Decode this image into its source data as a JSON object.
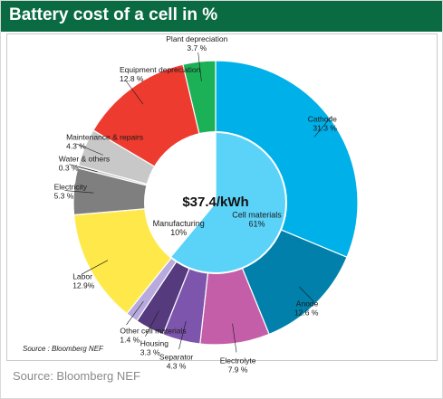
{
  "header": {
    "title": "Battery cost of a cell in %"
  },
  "colors": {
    "header_bg": "#0a6b42",
    "header_text": "#ffffff",
    "source_text": "#8a8a8a"
  },
  "chart_data": {
    "type": "pie",
    "title": "Battery cost of a cell in %",
    "center_label": "$37.4/kWh",
    "source": "Source : Bloomberg NEF",
    "inner": [
      {
        "name": "Cell materials",
        "pct": "61%",
        "value": 61,
        "color": "#5bd3f9"
      },
      {
        "name": "Manufacturing",
        "pct": "10%",
        "value": 10,
        "color": "#ffffff"
      },
      {
        "name": "",
        "pct": "",
        "value": 29,
        "color": "#ffffff"
      }
    ],
    "outer": [
      {
        "name": "Cathode",
        "pct": "31.3 %",
        "value": 31.3,
        "color": "#00b0e8"
      },
      {
        "name": "Anode",
        "pct": "12.6 %",
        "value": 12.6,
        "color": "#0080aa"
      },
      {
        "name": "Electrolyte",
        "pct": "7.9 %",
        "value": 7.9,
        "color": "#c55ea8"
      },
      {
        "name": "Separator",
        "pct": "4.3 %",
        "value": 4.3,
        "color": "#7e55ad"
      },
      {
        "name": "Housing",
        "pct": "3.3 %",
        "value": 3.3,
        "color": "#553b7e"
      },
      {
        "name": "Other cell materials",
        "pct": "1.4 %",
        "value": 1.4,
        "color": "#b8aadd"
      },
      {
        "name": "Labor",
        "pct": "12.9%",
        "value": 12.9,
        "color": "#ffe94a"
      },
      {
        "name": "Electricity",
        "pct": "5.3 %",
        "value": 5.3,
        "color": "#7f7f7f"
      },
      {
        "name": "Water & others",
        "pct": "0.3 %",
        "value": 0.3,
        "color": "#bfbfbf"
      },
      {
        "name": "Maintenance & repairs",
        "pct": "4.3 %",
        "value": 4.3,
        "color": "#c8c8c8"
      },
      {
        "name": "Equipment depreciation",
        "pct": "12.8 %",
        "value": 12.8,
        "color": "#ee3b2f"
      },
      {
        "name": "Plant depreciation",
        "pct": "3.7 %",
        "value": 3.7,
        "color": "#1db157"
      }
    ]
  },
  "footer": {
    "source": "Source: Bloomberg NEF"
  }
}
